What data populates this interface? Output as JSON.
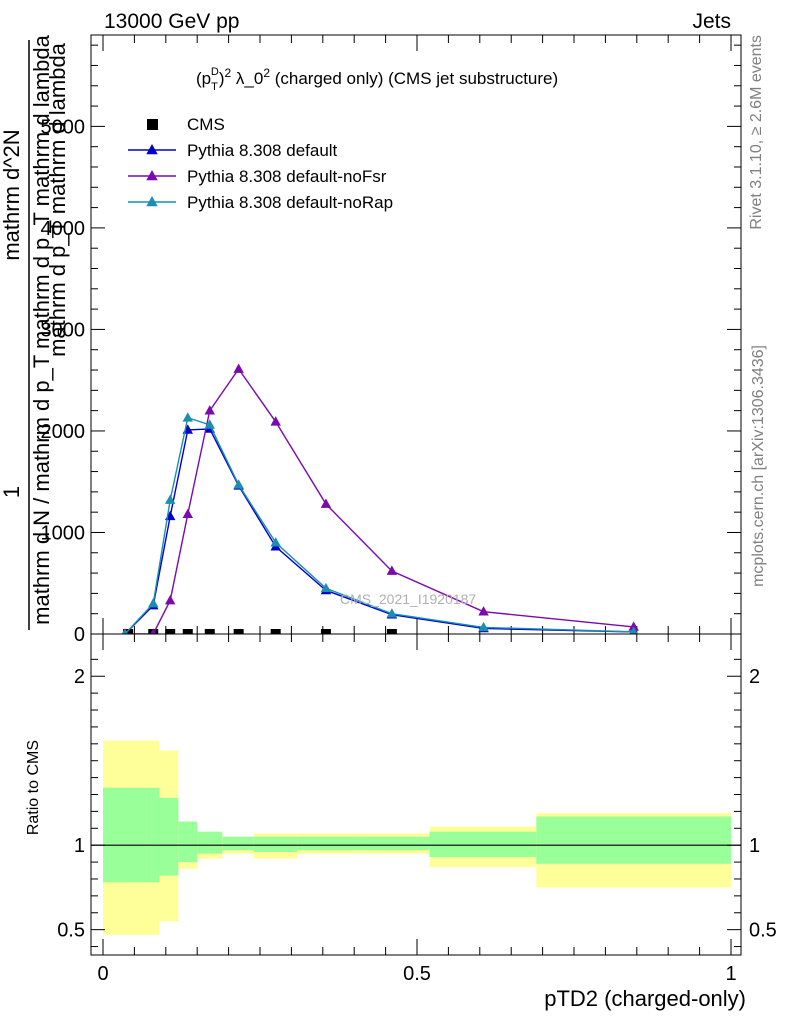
{
  "header": {
    "left": "13000 GeV pp",
    "right": "Jets"
  },
  "side_labels": {
    "rivet": "Rivet 3.1.10, ≥ 2.6M events",
    "mcplots": "mcplots.cern.ch [arXiv:1306.3436]"
  },
  "watermark": "CMS_2021_I1920187",
  "chart_data": [
    {
      "type": "line",
      "title": "(p_T^D)^2 λ_0^2 (charged only) (CMS jet substructure)",
      "title_parts": {
        "lead": "(p",
        "sup1": "D",
        "sub1": "T",
        "mid": ")",
        "sup2": "2",
        "lambda": " λ_0",
        "sup3": "2",
        "tail": " (charged only) (CMS jet substructure)"
      },
      "ylabel_numerator": "1",
      "ylabel_numerator_text": "mathrm d^2N",
      "ylabel_denominator": "mathrm d N / mathrm d p_T mathrm d p_T mathrm d lambda",
      "ylabel_extra": "mathrm d p_T mathrm d lambda",
      "xlim": [
        0,
        1
      ],
      "ylim": [
        0,
        5900
      ],
      "yticks": [
        0,
        1000,
        2000,
        3000,
        4000,
        5000
      ],
      "ytick_labels": [
        "0",
        "1000",
        "2000",
        "3000",
        "4000",
        "5000"
      ],
      "legend_position": "top-left",
      "series": [
        {
          "name": "CMS",
          "color": "#000000",
          "marker": "square",
          "x": [
            0.04,
            0.08,
            0.107,
            0.135,
            0.17,
            0.216,
            0.275,
            0.355,
            0.46
          ],
          "y": [
            0,
            0,
            0,
            0,
            0,
            0,
            0,
            0,
            0
          ]
        },
        {
          "name": "Pythia 8.308 default",
          "color": "#0000cc",
          "marker": "triangle",
          "x": [
            0.035,
            0.08,
            0.107,
            0.135,
            0.17,
            0.216,
            0.275,
            0.355,
            0.46,
            0.606,
            0.845
          ],
          "y": [
            0,
            280,
            1160,
            2010,
            2020,
            1460,
            860,
            430,
            190,
            55,
            20
          ]
        },
        {
          "name": "Pythia 8.308 default-noFsr",
          "color": "#7a0ab0",
          "marker": "triangle",
          "x": [
            0.035,
            0.08,
            0.107,
            0.135,
            0.17,
            0.216,
            0.275,
            0.355,
            0.46,
            0.606,
            0.845
          ],
          "y": [
            0,
            0,
            330,
            1180,
            2200,
            2610,
            2090,
            1280,
            620,
            220,
            70
          ]
        },
        {
          "name": "Pythia 8.308 default-noRap",
          "color": "#1a8fb0",
          "marker": "triangle",
          "x": [
            0.035,
            0.08,
            0.107,
            0.135,
            0.17,
            0.216,
            0.275,
            0.355,
            0.46,
            0.606,
            0.845
          ],
          "y": [
            0,
            300,
            1320,
            2130,
            2060,
            1470,
            900,
            450,
            200,
            65,
            22
          ]
        }
      ]
    },
    {
      "type": "area",
      "ylabel": "Ratio to CMS",
      "xlabel": "pTD2 (charged-only)",
      "xlim": [
        0,
        1
      ],
      "ylim": [
        0.35,
        2.25
      ],
      "yticks": [
        0.5,
        1,
        2
      ],
      "ytick_labels": [
        "0.5",
        "1",
        "2"
      ],
      "xticks": [
        0,
        0.5,
        1
      ],
      "xtick_labels": [
        "0",
        "0.5",
        "1"
      ],
      "reference_line": 1,
      "bin_edges": [
        0,
        0.07,
        0.09,
        0.12,
        0.15,
        0.19,
        0.24,
        0.31,
        0.41,
        0.52,
        0.69,
        1.0
      ],
      "inner_band": {
        "color": "#99ff99",
        "lower": [
          0.78,
          0.78,
          0.82,
          0.9,
          0.95,
          0.97,
          0.96,
          0.97,
          0.97,
          0.93,
          0.89
        ],
        "upper": [
          1.34,
          1.34,
          1.28,
          1.14,
          1.08,
          1.05,
          1.05,
          1.05,
          1.05,
          1.08,
          1.17
        ]
      },
      "outer_band": {
        "color": "#ffff99",
        "lower": [
          0.47,
          0.47,
          0.55,
          0.86,
          0.92,
          0.95,
          0.92,
          0.95,
          0.95,
          0.87,
          0.75
        ],
        "upper": [
          1.62,
          1.62,
          1.56,
          1.13,
          1.07,
          1.05,
          1.07,
          1.07,
          1.07,
          1.11,
          1.19
        ]
      }
    }
  ]
}
